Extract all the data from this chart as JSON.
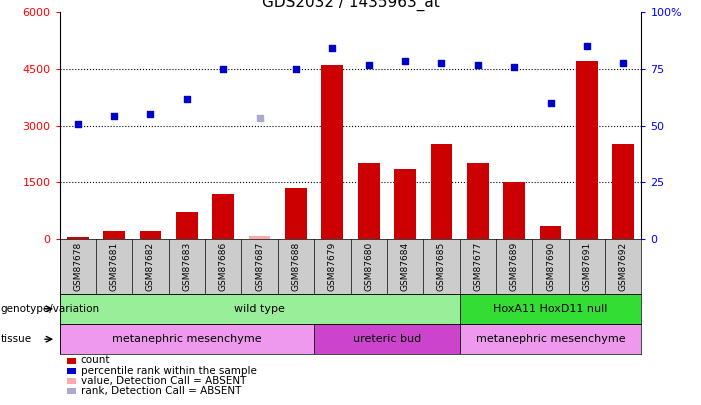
{
  "title": "GDS2032 / 1435963_at",
  "samples": [
    "GSM87678",
    "GSM87681",
    "GSM87682",
    "GSM87683",
    "GSM87686",
    "GSM87687",
    "GSM87688",
    "GSM87679",
    "GSM87680",
    "GSM87684",
    "GSM87685",
    "GSM87677",
    "GSM87689",
    "GSM87690",
    "GSM87691",
    "GSM87692"
  ],
  "bar_values": [
    50,
    200,
    200,
    700,
    1200,
    80,
    1350,
    4600,
    2000,
    1850,
    2500,
    2000,
    1500,
    350,
    4700,
    2500
  ],
  "bar_absent": [
    false,
    false,
    false,
    false,
    false,
    true,
    false,
    false,
    false,
    false,
    false,
    false,
    false,
    false,
    false,
    false
  ],
  "dot_values": [
    3050,
    3250,
    3300,
    3700,
    4500,
    3200,
    4500,
    5050,
    4600,
    4700,
    4650,
    4600,
    4550,
    3600,
    5100,
    4650
  ],
  "dot_absent": [
    false,
    false,
    false,
    false,
    false,
    true,
    false,
    false,
    false,
    false,
    false,
    false,
    false,
    false,
    false,
    false
  ],
  "ylim_left": [
    0,
    6000
  ],
  "ylim_right": [
    0,
    100
  ],
  "yticks_left": [
    0,
    1500,
    3000,
    4500,
    6000
  ],
  "yticks_right": [
    0,
    25,
    50,
    75,
    100
  ],
  "bar_color": "#cc0000",
  "bar_absent_color": "#ffaaaa",
  "dot_color": "#0000cc",
  "dot_absent_color": "#aaaacc",
  "genotype_groups": [
    {
      "label": "wild type",
      "start": 0,
      "end": 10,
      "color": "#99ee99"
    },
    {
      "label": "HoxA11 HoxD11 null",
      "start": 11,
      "end": 15,
      "color": "#33dd33"
    }
  ],
  "tissue_groups": [
    {
      "label": "metanephric mesenchyme",
      "start": 0,
      "end": 6,
      "color": "#ee99ee"
    },
    {
      "label": "ureteric bud",
      "start": 7,
      "end": 10,
      "color": "#cc44cc"
    },
    {
      "label": "metanephric mesenchyme",
      "start": 11,
      "end": 15,
      "color": "#ee99ee"
    }
  ],
  "legend_items": [
    {
      "color": "#cc0000",
      "label": "count"
    },
    {
      "color": "#0000cc",
      "label": "percentile rank within the sample"
    },
    {
      "color": "#ffaaaa",
      "label": "value, Detection Call = ABSENT"
    },
    {
      "color": "#aaaacc",
      "label": "rank, Detection Call = ABSENT"
    }
  ],
  "bg_color": "#cccccc",
  "plot_bg": "#ffffff",
  "title_fontsize": 11
}
